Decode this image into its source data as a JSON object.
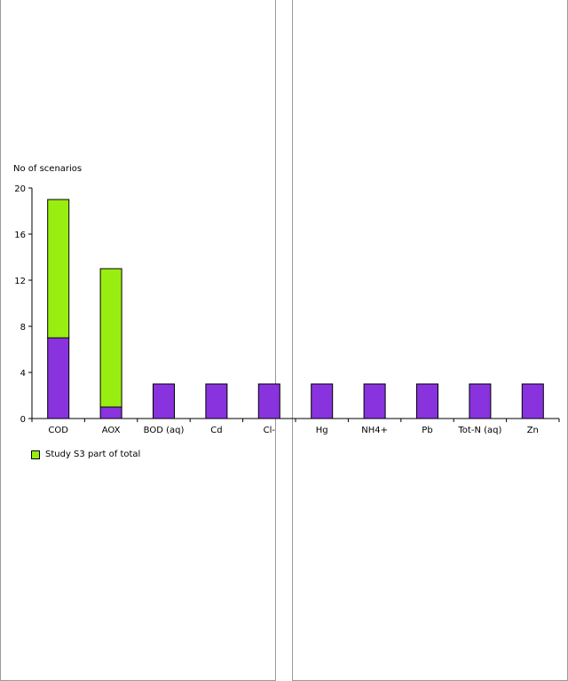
{
  "chart_data": {
    "type": "bar",
    "stacked": true,
    "ylabel": "No of scenarios",
    "ylim": [
      0,
      20
    ],
    "yticks": [
      0,
      4,
      8,
      12,
      16,
      20
    ],
    "categories": [
      "COD",
      "AOX",
      "BOD (aq)",
      "Cd",
      "Cl-",
      "Hg",
      "NH4+",
      "Pb",
      "Tot-N (aq)",
      "Zn"
    ],
    "series": [
      {
        "color": "#8833dd",
        "values": [
          7,
          1,
          3,
          3,
          3,
          3,
          3,
          3,
          3,
          3
        ]
      },
      {
        "name": "Study S3 part of total",
        "color": "#99ee11",
        "values": [
          12,
          12,
          0,
          0,
          0,
          0,
          0,
          0,
          0,
          0
        ]
      }
    ],
    "legend": {
      "position": "bottom-left",
      "entries": [
        "Study S3 part of total"
      ]
    },
    "grid": false
  }
}
